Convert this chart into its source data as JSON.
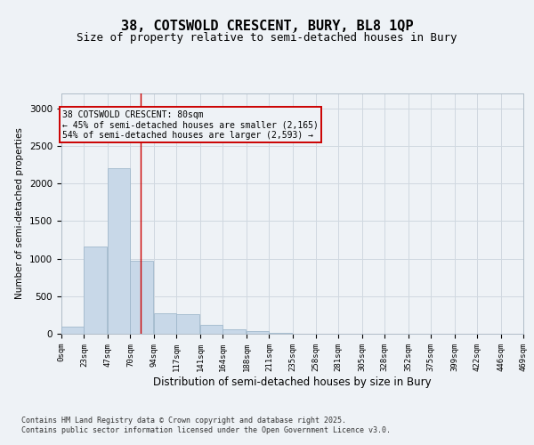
{
  "title": "38, COTSWOLD CRESCENT, BURY, BL8 1QP",
  "subtitle": "Size of property relative to semi-detached houses in Bury",
  "xlabel": "Distribution of semi-detached houses by size in Bury",
  "ylabel": "Number of semi-detached properties",
  "bar_values": [
    90,
    1165,
    2200,
    975,
    270,
    265,
    120,
    60,
    30,
    15,
    5,
    2,
    2,
    1,
    0,
    0,
    0,
    0,
    0,
    0
  ],
  "bin_edges": [
    0,
    23,
    47,
    70,
    94,
    117,
    141,
    164,
    188,
    211,
    235,
    258,
    281,
    305,
    328,
    352,
    375,
    399,
    422,
    446,
    469
  ],
  "xtick_labels": [
    "0sqm",
    "23sqm",
    "47sqm",
    "70sqm",
    "94sqm",
    "117sqm",
    "141sqm",
    "164sqm",
    "188sqm",
    "211sqm",
    "235sqm",
    "258sqm",
    "281sqm",
    "305sqm",
    "328sqm",
    "352sqm",
    "375sqm",
    "399sqm",
    "422sqm",
    "446sqm",
    "469sqm"
  ],
  "bar_color": "#c8d8e8",
  "bar_edgecolor": "#a0b8cc",
  "grid_color": "#d0d8e0",
  "vline_x": 80,
  "vline_color": "#cc0000",
  "annotation_text": "38 COTSWOLD CRESCENT: 80sqm\n← 45% of semi-detached houses are smaller (2,165)\n54% of semi-detached houses are larger (2,593) →",
  "annotation_box_color": "#cc0000",
  "ylim": [
    0,
    3200
  ],
  "yticks": [
    0,
    500,
    1000,
    1500,
    2000,
    2500,
    3000
  ],
  "footer_line1": "Contains HM Land Registry data © Crown copyright and database right 2025.",
  "footer_line2": "Contains public sector information licensed under the Open Government Licence v3.0.",
  "title_fontsize": 11,
  "subtitle_fontsize": 9,
  "background_color": "#eef2f6"
}
